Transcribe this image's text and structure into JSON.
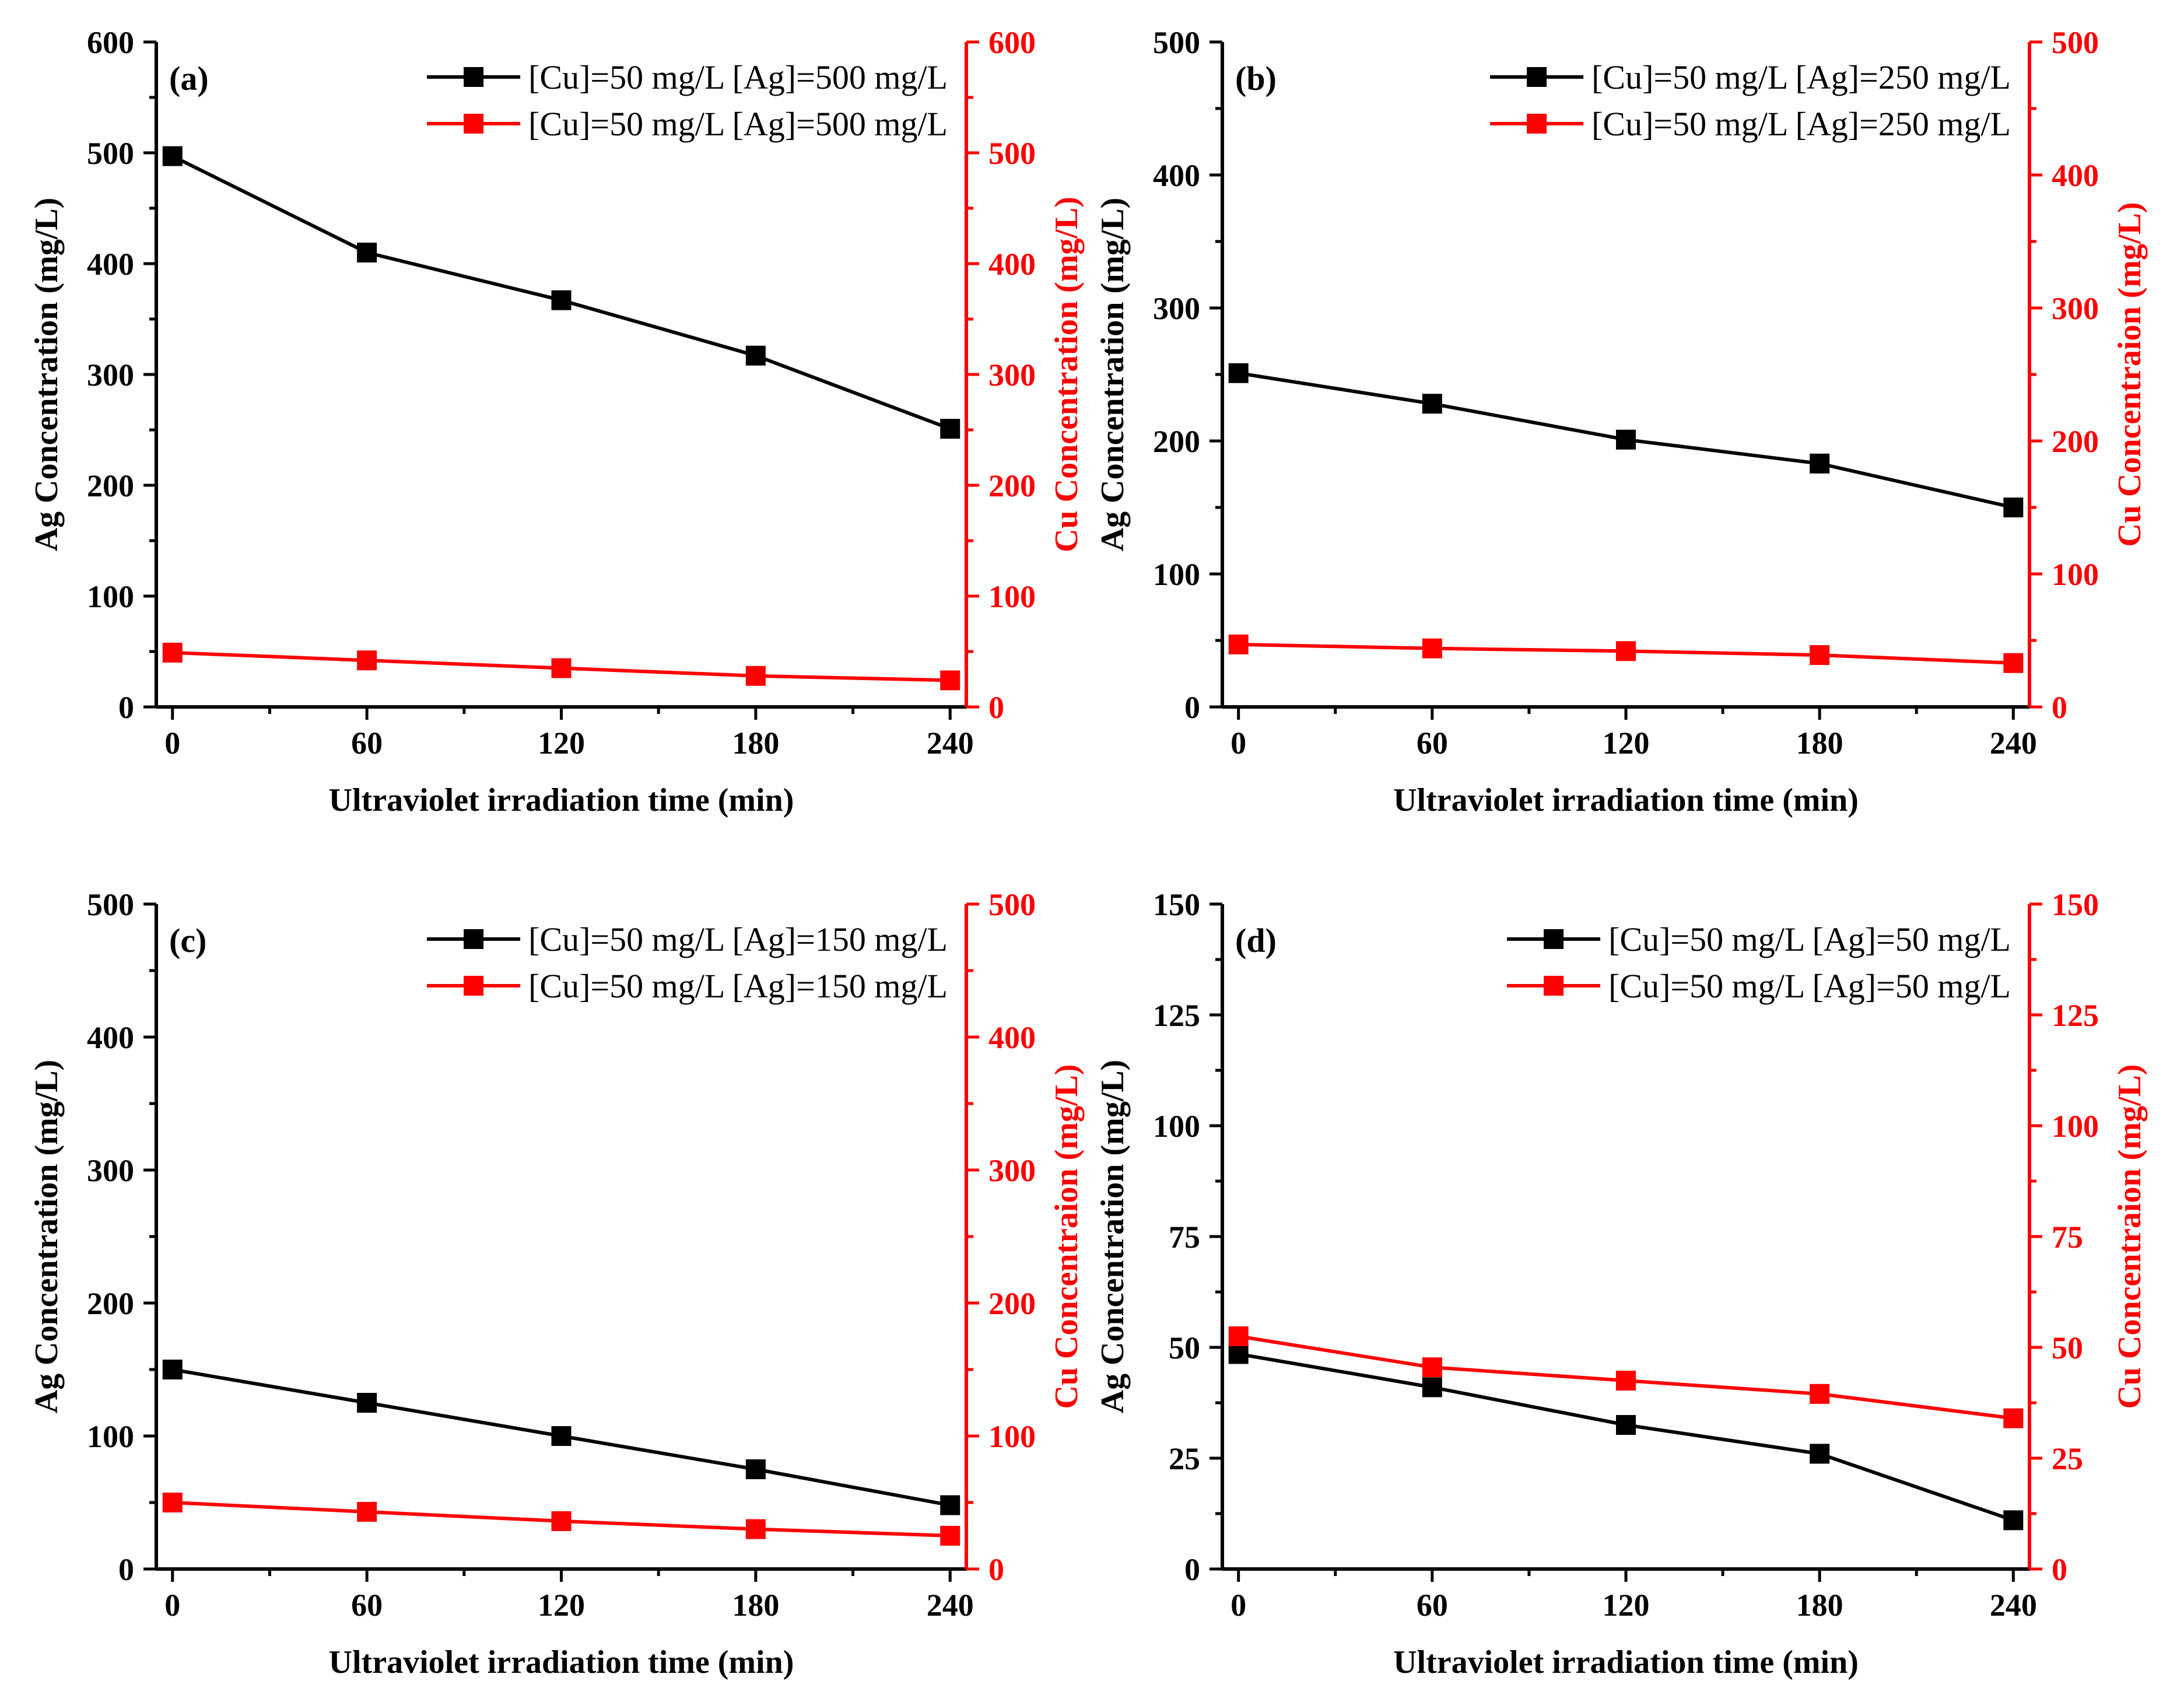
{
  "chart_data": [
    {
      "type": "line",
      "panel_label": "(a)",
      "xlabel": "Ultraviolet irradiation time (min)",
      "ylabel_left": "Ag Concentration (mg/L)",
      "ylabel_right": "Cu Concentration (mg/L)",
      "x": [
        0,
        60,
        120,
        180,
        240
      ],
      "x_ticks": [
        0,
        60,
        120,
        180,
        240
      ],
      "xlim": [
        -5,
        245
      ],
      "y_left_ticks": [
        0,
        100,
        200,
        300,
        400,
        500,
        600
      ],
      "ylim_left": [
        0,
        600
      ],
      "y_right_ticks": [
        0,
        100,
        200,
        300,
        400,
        500,
        600
      ],
      "ylim_right": [
        0,
        600
      ],
      "legend_position": "top-right",
      "series": [
        {
          "name": "[Cu]=50 mg/L [Ag]=500 mg/L",
          "axis": "left",
          "color": "#000000",
          "marker": "square",
          "values": [
            497,
            410,
            367,
            317,
            251
          ]
        },
        {
          "name": "[Cu]=50 mg/L [Ag]=500 mg/L",
          "axis": "right",
          "color": "#ff0000",
          "marker": "square",
          "values": [
            49,
            42,
            35,
            28,
            24
          ]
        }
      ]
    },
    {
      "type": "line",
      "panel_label": "(b)",
      "xlabel": "Ultraviolet irradiation time (min)",
      "ylabel_left": "Ag Concentration (mg/L)",
      "ylabel_right": "Cu Concentraion (mg/L)",
      "x": [
        0,
        60,
        120,
        180,
        240
      ],
      "x_ticks": [
        0,
        60,
        120,
        180,
        240
      ],
      "xlim": [
        -5,
        245
      ],
      "y_left_ticks": [
        0,
        100,
        200,
        300,
        400,
        500
      ],
      "ylim_left": [
        0,
        500
      ],
      "y_right_ticks": [
        0,
        100,
        200,
        300,
        400,
        500
      ],
      "ylim_right": [
        0,
        500
      ],
      "legend_position": "top-right",
      "series": [
        {
          "name": "[Cu]=50 mg/L [Ag]=250 mg/L",
          "axis": "left",
          "color": "#000000",
          "marker": "square",
          "values": [
            251,
            228,
            201,
            183,
            150
          ]
        },
        {
          "name": "[Cu]=50 mg/L [Ag]=250 mg/L",
          "axis": "right",
          "color": "#ff0000",
          "marker": "square",
          "values": [
            47,
            44,
            42,
            39,
            33
          ]
        }
      ]
    },
    {
      "type": "line",
      "panel_label": "(c)",
      "xlabel": "Ultraviolet irradiation time (min)",
      "ylabel_left": "Ag Concentration (mg/L)",
      "ylabel_right": "Cu Concentraion (mg/L)",
      "x": [
        0,
        60,
        120,
        180,
        240
      ],
      "x_ticks": [
        0,
        60,
        120,
        180,
        240
      ],
      "xlim": [
        -5,
        245
      ],
      "y_left_ticks": [
        0,
        100,
        200,
        300,
        400,
        500
      ],
      "ylim_left": [
        0,
        500
      ],
      "y_right_ticks": [
        0,
        100,
        200,
        300,
        400,
        500
      ],
      "ylim_right": [
        0,
        500
      ],
      "legend_position": "top-right",
      "series": [
        {
          "name": "[Cu]=50 mg/L [Ag]=150 mg/L",
          "axis": "left",
          "color": "#000000",
          "marker": "square",
          "values": [
            150,
            125,
            100,
            75,
            48
          ]
        },
        {
          "name": "[Cu]=50 mg/L [Ag]=150 mg/L",
          "axis": "right",
          "color": "#ff0000",
          "marker": "square",
          "values": [
            50,
            43,
            36,
            30,
            25
          ]
        }
      ]
    },
    {
      "type": "line",
      "panel_label": "(d)",
      "xlabel": "Ultraviolet irradiation time (min)",
      "ylabel_left": "Ag Concentration (mg/L)",
      "ylabel_right": "Cu Concentraion (mg/L)",
      "x": [
        0,
        60,
        120,
        180,
        240
      ],
      "x_ticks": [
        0,
        60,
        120,
        180,
        240
      ],
      "xlim": [
        -5,
        245
      ],
      "y_left_ticks": [
        0,
        25,
        50,
        75,
        100,
        125,
        150
      ],
      "ylim_left": [
        0,
        150
      ],
      "y_right_ticks": [
        0,
        25,
        50,
        75,
        100,
        125,
        150
      ],
      "ylim_right": [
        0,
        150
      ],
      "legend_position": "top-right",
      "series": [
        {
          "name": "[Cu]=50 mg/L [Ag]=50 mg/L",
          "axis": "left",
          "color": "#000000",
          "marker": "square",
          "values": [
            48.5,
            41,
            32.5,
            26,
            11
          ]
        },
        {
          "name": "[Cu]=50 mg/L [Ag]=50 mg/L",
          "axis": "right",
          "color": "#ff0000",
          "marker": "square",
          "values": [
            52.5,
            45.5,
            42.5,
            39.5,
            34
          ]
        }
      ]
    }
  ]
}
